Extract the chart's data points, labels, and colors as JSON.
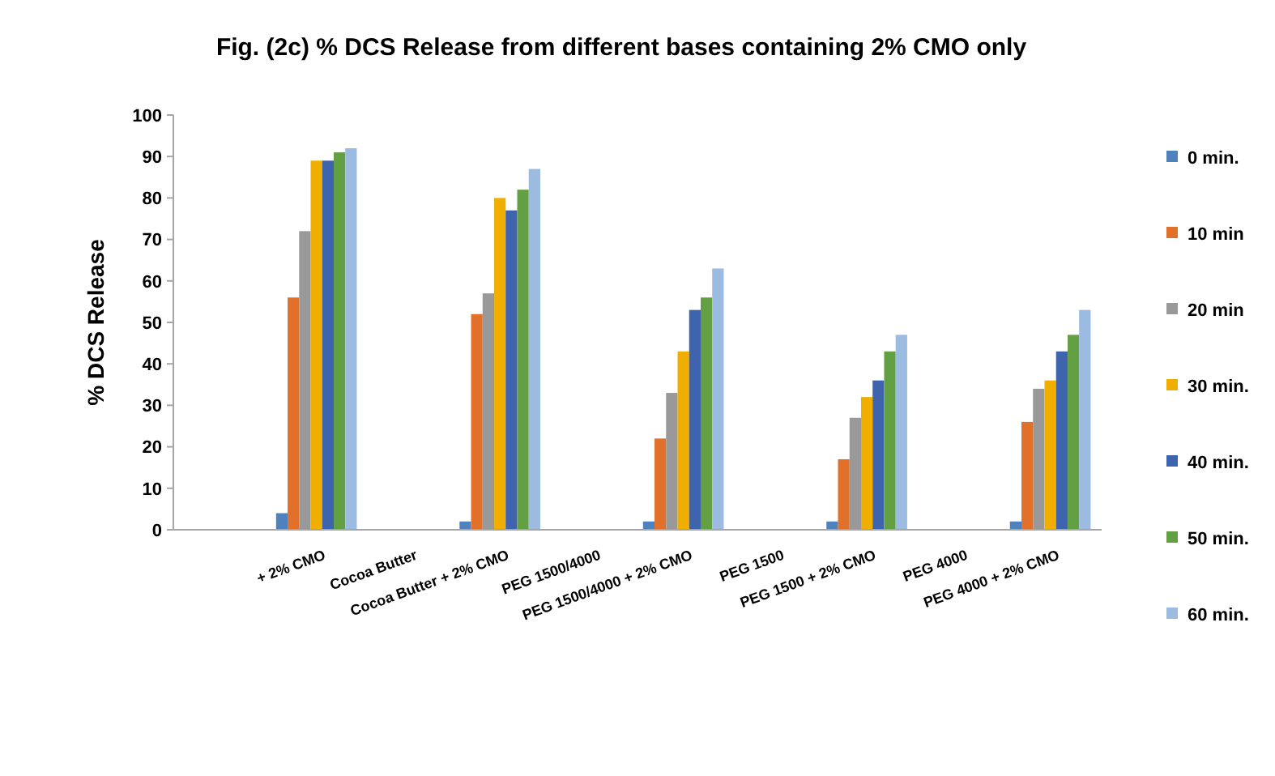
{
  "chart_data": {
    "type": "bar",
    "title": "Fig. (2c)  % DCS Release from different bases containing 2% CMO only",
    "ylabel": "% DCS Release",
    "categories": [
      null,
      "+ 2% CMO",
      "Cocoa Butter",
      "Cocoa Butter + 2% CMO",
      "PEG 1500/4000",
      "PEG 1500/4000 + 2% CMO",
      "PEG 1500",
      "PEG 1500 + 2% CMO",
      "PEG 4000",
      "PEG 4000 + 2% CMO"
    ],
    "series": [
      {
        "name": "0 min.",
        "color": "#4f81bd",
        "values": [
          0,
          4,
          0,
          2,
          0,
          2,
          0,
          2,
          0,
          2
        ]
      },
      {
        "name": "10 min",
        "color": "#e0702a",
        "values": [
          0,
          56,
          0,
          52,
          0,
          22,
          0,
          17,
          0,
          26
        ]
      },
      {
        "name": "20 min",
        "color": "#999999",
        "values": [
          0,
          72,
          0,
          57,
          0,
          33,
          0,
          27,
          0,
          34
        ]
      },
      {
        "name": "30 min.",
        "color": "#f0ae00",
        "values": [
          0,
          89,
          0,
          80,
          0,
          43,
          0,
          32,
          0,
          36
        ]
      },
      {
        "name": "40 min.",
        "color": "#3d64ad",
        "values": [
          0,
          89,
          0,
          77,
          0,
          53,
          0,
          36,
          0,
          43
        ]
      },
      {
        "name": "50 min.",
        "color": "#63a043",
        "values": [
          0,
          91,
          0,
          82,
          0,
          56,
          0,
          43,
          0,
          47
        ]
      },
      {
        "name": "60 min.",
        "color": "#9bbbe0",
        "values": [
          0,
          92,
          0,
          87,
          0,
          63,
          0,
          47,
          0,
          53
        ]
      }
    ],
    "ylim": [
      0,
      100
    ],
    "yticks": [
      0,
      10,
      20,
      30,
      40,
      50,
      60,
      70,
      80,
      90,
      100
    ],
    "grid": false,
    "legend": "right"
  }
}
